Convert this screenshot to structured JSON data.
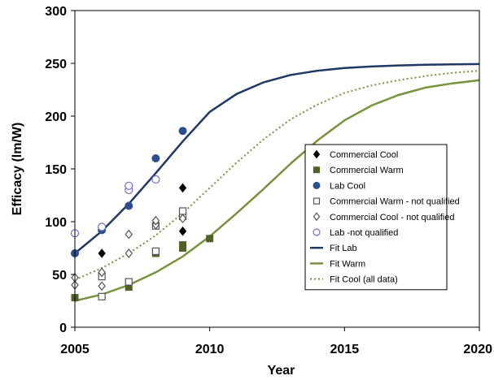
{
  "chart_data": {
    "type": "scatter",
    "title": "",
    "xlabel": "Year",
    "ylabel": "Efficacy (lm/W)",
    "xlim": [
      2005,
      2020
    ],
    "ylim": [
      0,
      300
    ],
    "x_ticks": [
      2005,
      2010,
      2015,
      2020
    ],
    "y_ticks": [
      0,
      50,
      100,
      150,
      200,
      250,
      300
    ],
    "grid": false,
    "legend_position": "center-right",
    "series": [
      {
        "name": "Commercial Cool",
        "kind": "points",
        "marker": "diamond",
        "color": "#000000",
        "filled": true,
        "points": [
          [
            2006,
            70
          ],
          [
            2009,
            91
          ],
          [
            2009,
            132
          ]
        ]
      },
      {
        "name": "Commercial Warm",
        "kind": "points",
        "marker": "square",
        "color": "#4f6228",
        "filled": true,
        "points": [
          [
            2005,
            28
          ],
          [
            2007,
            38
          ],
          [
            2008,
            70
          ],
          [
            2009,
            75
          ],
          [
            2009,
            78
          ],
          [
            2010,
            84
          ]
        ]
      },
      {
        "name": "Lab Cool",
        "kind": "points",
        "marker": "circle",
        "color": "#2f4e8f",
        "filled": true,
        "points": [
          [
            2005,
            70
          ],
          [
            2006,
            92
          ],
          [
            2007,
            115
          ],
          [
            2008,
            160
          ],
          [
            2009,
            186
          ]
        ]
      },
      {
        "name": "Commercial Warm - not qualified",
        "kind": "points",
        "marker": "square",
        "color": "#555555",
        "filled": false,
        "points": [
          [
            2006,
            29
          ],
          [
            2006,
            48
          ],
          [
            2007,
            43
          ],
          [
            2008,
            72
          ],
          [
            2008,
            96
          ],
          [
            2009,
            105
          ],
          [
            2009,
            110
          ]
        ]
      },
      {
        "name": "Commercial Cool - not qualified",
        "kind": "points",
        "marker": "diamond",
        "color": "#555555",
        "filled": false,
        "points": [
          [
            2005,
            40
          ],
          [
            2005,
            47
          ],
          [
            2006,
            39
          ],
          [
            2006,
            52
          ],
          [
            2007,
            70
          ],
          [
            2007,
            88
          ],
          [
            2008,
            97
          ],
          [
            2008,
            101
          ],
          [
            2009,
            103
          ]
        ]
      },
      {
        "name": "Lab -not qualified",
        "kind": "points",
        "marker": "circle",
        "color": "#6f6fd0",
        "filled": false,
        "points": [
          [
            2005,
            89
          ],
          [
            2006,
            95
          ],
          [
            2007,
            130
          ],
          [
            2007,
            134
          ],
          [
            2008,
            140
          ]
        ]
      },
      {
        "name": "Fit Lab",
        "kind": "line",
        "style": "solid",
        "color": "#1f3864",
        "points": [
          [
            2005,
            70
          ],
          [
            2006,
            91
          ],
          [
            2007,
            117
          ],
          [
            2008,
            146
          ],
          [
            2009,
            176
          ],
          [
            2010,
            204
          ],
          [
            2011,
            221
          ],
          [
            2012,
            232
          ],
          [
            2013,
            239
          ],
          [
            2014,
            243
          ],
          [
            2015,
            245.5
          ],
          [
            2016,
            247
          ],
          [
            2017,
            248
          ],
          [
            2018,
            248.6
          ],
          [
            2019,
            249
          ],
          [
            2020,
            249.3
          ]
        ]
      },
      {
        "name": "Fit Warm",
        "kind": "line",
        "style": "solid",
        "color": "#77933c",
        "points": [
          [
            2005,
            25
          ],
          [
            2006,
            31
          ],
          [
            2007,
            40
          ],
          [
            2008,
            52
          ],
          [
            2009,
            67
          ],
          [
            2010,
            86
          ],
          [
            2011,
            108
          ],
          [
            2012,
            131
          ],
          [
            2013,
            155
          ],
          [
            2014,
            177
          ],
          [
            2015,
            196
          ],
          [
            2016,
            210
          ],
          [
            2017,
            220
          ],
          [
            2018,
            227
          ],
          [
            2019,
            231
          ],
          [
            2020,
            234
          ]
        ]
      },
      {
        "name": "Fit Cool (all data)",
        "kind": "line",
        "style": "dotted",
        "color": "#77933c",
        "points": [
          [
            2005,
            45
          ],
          [
            2006,
            56
          ],
          [
            2007,
            70
          ],
          [
            2008,
            87
          ],
          [
            2009,
            108
          ],
          [
            2010,
            132
          ],
          [
            2011,
            156
          ],
          [
            2012,
            178
          ],
          [
            2013,
            197
          ],
          [
            2014,
            211
          ],
          [
            2015,
            222
          ],
          [
            2016,
            229
          ],
          [
            2017,
            234
          ],
          [
            2018,
            238
          ],
          [
            2019,
            241
          ],
          [
            2020,
            243
          ]
        ]
      }
    ]
  }
}
